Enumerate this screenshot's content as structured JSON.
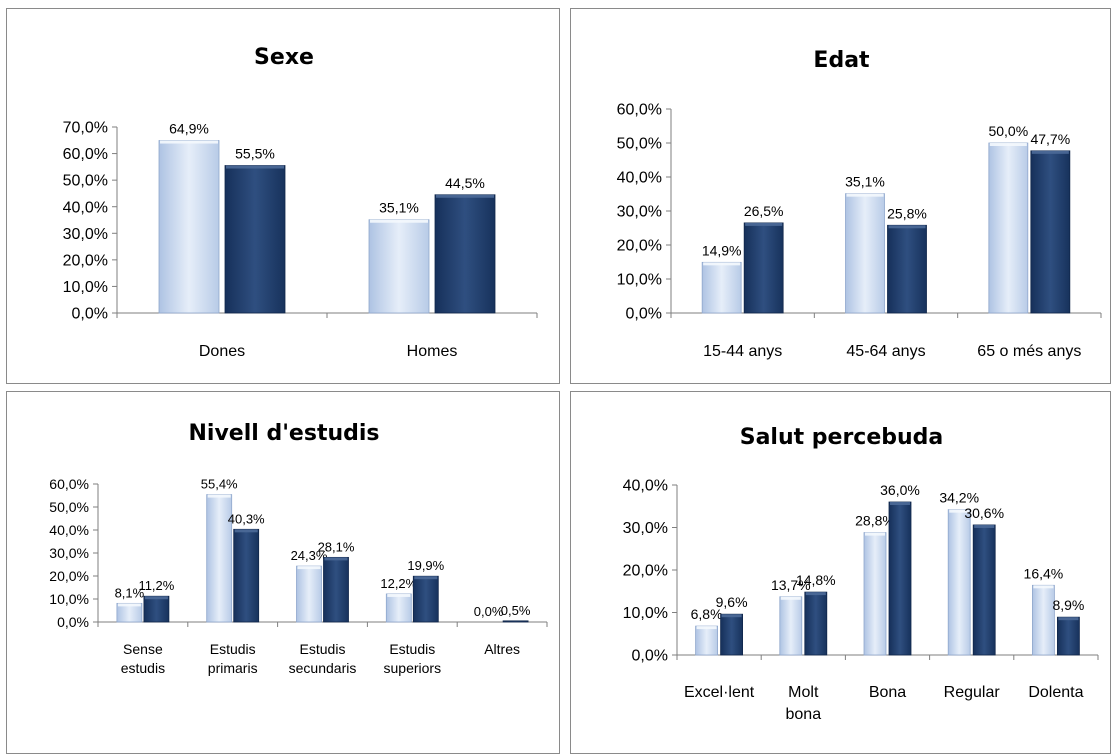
{
  "colors": {
    "series_light": "#c9d8ee",
    "series_dark": "#1f3b66",
    "axis": "#7f7f7f",
    "border": "#8a8a8a"
  },
  "chart_data": [
    {
      "type": "bar",
      "title": "Sexe",
      "categories": [
        "Dones",
        "Homes"
      ],
      "series": [
        {
          "values": [
            64.9,
            35.1
          ]
        },
        {
          "values": [
            55.5,
            44.5
          ]
        }
      ],
      "ylim": [
        0,
        70
      ],
      "yticks": [
        "0,0%",
        "10,0%",
        "20,0%",
        "30,0%",
        "40,0%",
        "50,0%",
        "60,0%",
        "70,0%"
      ],
      "data_labels": [
        [
          "64,9%",
          "35,1%"
        ],
        [
          "55,5%",
          "44,5%"
        ]
      ],
      "grid": false,
      "legend": "none"
    },
    {
      "type": "bar",
      "title": "Edat",
      "categories": [
        "15-44 anys",
        "45-64 anys",
        "65 o més anys"
      ],
      "series": [
        {
          "values": [
            14.9,
            35.1,
            50.0
          ]
        },
        {
          "values": [
            26.5,
            25.8,
            47.7
          ]
        }
      ],
      "ylim": [
        0,
        60
      ],
      "yticks": [
        "0,0%",
        "10,0%",
        "20,0%",
        "30,0%",
        "40,0%",
        "50,0%",
        "60,0%"
      ],
      "data_labels": [
        [
          "14,9%",
          "35,1%",
          "50,0%"
        ],
        [
          "26,5%",
          "25,8%",
          "47,7%"
        ]
      ],
      "grid": false,
      "legend": "none"
    },
    {
      "type": "bar",
      "title": "Nivell d'estudis",
      "categories": [
        [
          "Sense",
          "estudis"
        ],
        [
          "Estudis",
          "primaris"
        ],
        [
          "Estudis",
          "secundaris"
        ],
        [
          "Estudis",
          "superiors"
        ],
        [
          "Altres"
        ]
      ],
      "series": [
        {
          "values": [
            8.1,
            55.4,
            24.3,
            12.2,
            0.0
          ]
        },
        {
          "values": [
            11.2,
            40.3,
            28.1,
            19.9,
            0.5
          ]
        }
      ],
      "ylim": [
        0,
        60
      ],
      "yticks": [
        "0,0%",
        "10,0%",
        "20,0%",
        "30,0%",
        "40,0%",
        "50,0%",
        "60,0%"
      ],
      "data_labels": [
        [
          "8,1%",
          "55,4%",
          "24,3%",
          "12,2%",
          "0,0%"
        ],
        [
          "11,2%",
          "40,3%",
          "28,1%",
          "19,9%",
          "0,5%"
        ]
      ],
      "grid": false,
      "legend": "none"
    },
    {
      "type": "bar",
      "title": "Salut percebuda",
      "categories": [
        [
          "Excel·lent"
        ],
        [
          "Molt",
          "bona"
        ],
        [
          "Bona"
        ],
        [
          "Regular"
        ],
        [
          "Dolenta"
        ]
      ],
      "series": [
        {
          "values": [
            6.8,
            13.7,
            28.8,
            34.2,
            16.4
          ]
        },
        {
          "values": [
            9.6,
            14.8,
            36.0,
            30.6,
            8.9
          ]
        }
      ],
      "ylim": [
        0,
        40
      ],
      "yticks": [
        "0,0%",
        "10,0%",
        "20,0%",
        "30,0%",
        "40,0%"
      ],
      "data_labels": [
        [
          "6,8%",
          "13,7%",
          "28,8%",
          "34,2%",
          "16,4%"
        ],
        [
          "9,6%",
          "14,8%",
          "36,0%",
          "30,6%",
          "8,9%"
        ]
      ],
      "grid": false,
      "legend": "none"
    }
  ]
}
